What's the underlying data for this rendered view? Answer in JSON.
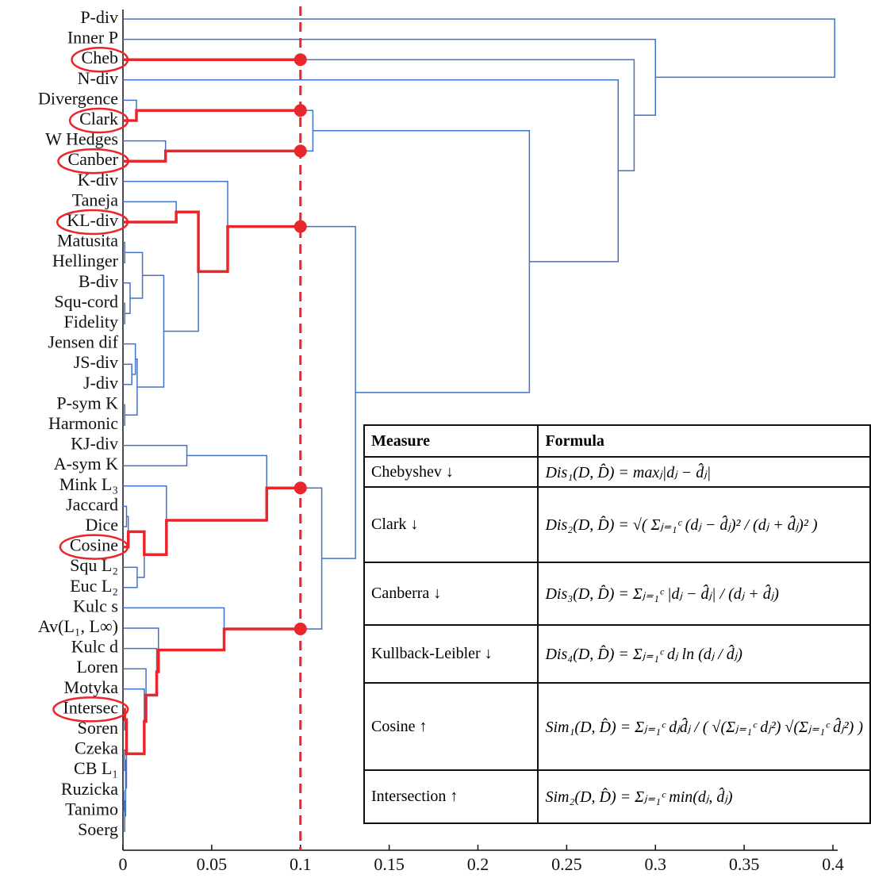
{
  "chart_data": {
    "type": "dendrogram",
    "leaves": [
      "P-div",
      "Inner P",
      "Cheb",
      "N-div",
      "Divergence",
      "Clark",
      "W Hedges",
      "Canber",
      "K-div",
      "Taneja",
      "KL-div",
      "Matusita",
      "Hellinger",
      "B-div",
      "Squ-cord",
      "Fidelity",
      "Jensen dif",
      "JS-div",
      "J-div",
      "P-sym K",
      "Harmonic",
      "KJ-div",
      "A-sym K",
      "Mink L₃",
      "Jaccard",
      "Dice",
      "Cosine",
      "Squ L₂",
      "Euc L₂",
      "Kulc s",
      "Av(L₁, L∞)",
      "Kulc d",
      "Loren",
      "Motyka",
      "Intersec",
      "Soren",
      "Czeka",
      "CB L₁",
      "Ruzicka",
      "Tanimo",
      "Soerg"
    ],
    "merges": [
      {
        "left": 4,
        "right": 5,
        "height": 0.0076
      },
      {
        "left": 6,
        "right": 7,
        "height": 0.024
      },
      {
        "left": 41,
        "right": 42,
        "height": 0.107
      },
      {
        "left": 11,
        "right": 12,
        "height": 0.001
      },
      {
        "left": 14,
        "right": 15,
        "height": 0.001
      },
      {
        "left": 13,
        "right": 45,
        "height": 0.004
      },
      {
        "left": 44,
        "right": 46,
        "height": 0.011
      },
      {
        "left": 17,
        "right": 18,
        "height": 0.005
      },
      {
        "left": 16,
        "right": 48,
        "height": 0.007
      },
      {
        "left": 19,
        "right": 20,
        "height": 0.001
      },
      {
        "left": 49,
        "right": 50,
        "height": 0.008
      },
      {
        "left": 47,
        "right": 51,
        "height": 0.023
      },
      {
        "left": 9,
        "right": 10,
        "height": 0.03
      },
      {
        "left": 53,
        "right": 52,
        "height": 0.0425
      },
      {
        "left": 8,
        "right": 54,
        "height": 0.059
      },
      {
        "left": 21,
        "right": 22,
        "height": 0.036
      },
      {
        "left": 24,
        "right": 25,
        "height": 0.002
      },
      {
        "left": 57,
        "right": 26,
        "height": 0.003
      },
      {
        "left": 27,
        "right": 28,
        "height": 0.008
      },
      {
        "left": 58,
        "right": 59,
        "height": 0.012
      },
      {
        "left": 23,
        "right": 60,
        "height": 0.0245
      },
      {
        "left": 56,
        "right": 61,
        "height": 0.081
      },
      {
        "left": 34,
        "right": 35,
        "height": 0.001
      },
      {
        "left": 36,
        "right": 37,
        "height": 0.001
      },
      {
        "left": 38,
        "right": 39,
        "height": 0.0005
      },
      {
        "left": 65,
        "right": 40,
        "height": 0.001
      },
      {
        "left": 64,
        "right": 66,
        "height": 0.0015
      },
      {
        "left": 63,
        "right": 67,
        "height": 0.002
      },
      {
        "left": 33,
        "right": 68,
        "height": 0.012
      },
      {
        "left": 32,
        "right": 69,
        "height": 0.013
      },
      {
        "left": 31,
        "right": 70,
        "height": 0.019
      },
      {
        "left": 30,
        "right": 71,
        "height": 0.02
      },
      {
        "left": 29,
        "right": 72,
        "height": 0.057
      },
      {
        "left": 62,
        "right": 73,
        "height": 0.112
      },
      {
        "left": 55,
        "right": 74,
        "height": 0.131
      },
      {
        "left": 43,
        "right": 75,
        "height": 0.229
      },
      {
        "left": 3,
        "right": 76,
        "height": 0.279
      },
      {
        "left": 2,
        "right": 77,
        "height": 0.288
      },
      {
        "left": 1,
        "right": 78,
        "height": 0.3
      },
      {
        "left": 0,
        "right": 79,
        "height": 0.401
      }
    ],
    "highlight": [
      2,
      5,
      7,
      10,
      26,
      34
    ],
    "threshold": 0.1,
    "link_color": "#4472c4",
    "highlight_color": "#e8262b",
    "xlim": [
      0,
      0.4
    ],
    "xticks": [
      0,
      0.05,
      0.1,
      0.15,
      0.2,
      0.25,
      0.3,
      0.35,
      0.4
    ]
  },
  "table": {
    "header": [
      "Measure",
      "Formula"
    ],
    "rows": [
      [
        "Chebyshev ↓",
        "Dis₁(D, D̂) = maxⱼ|dⱼ − d̂ⱼ|"
      ],
      [
        "Clark ↓",
        "Dis₂(D, D̂) = √( Σⱼ₌₁ᶜ (dⱼ − d̂ⱼ)² / (dⱼ + d̂ⱼ)² )"
      ],
      [
        "Canberra ↓",
        "Dis₃(D, D̂) = Σⱼ₌₁ᶜ |dⱼ − d̂ⱼ| / (dⱼ + d̂ⱼ)"
      ],
      [
        "Kullback-Leibler ↓",
        "Dis₄(D, D̂) = Σⱼ₌₁ᶜ dⱼ ln (dⱼ / d̂ⱼ)"
      ],
      [
        "Cosine ↑",
        "Sim₁(D, D̂) = Σⱼ₌₁ᶜ dⱼd̂ⱼ / ( √(Σⱼ₌₁ᶜ dⱼ²) √(Σⱼ₌₁ᶜ d̂ⱼ²) )"
      ],
      [
        "Intersection ↑",
        "Sim₂(D, D̂) = Σⱼ₌₁ᶜ min(dⱼ, d̂ⱼ)"
      ]
    ]
  }
}
